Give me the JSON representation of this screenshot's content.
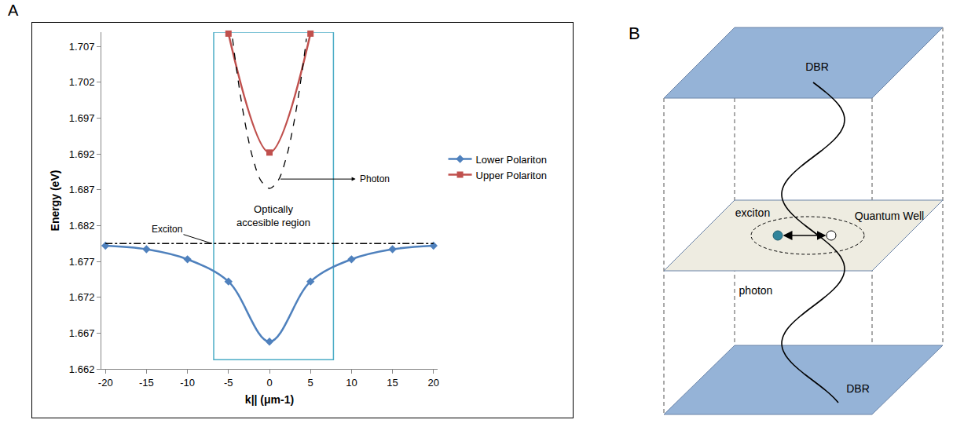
{
  "panel_labels": [
    "A",
    "B"
  ],
  "chart_data": {
    "type": "line",
    "xlabel": "k|| (μm-1)",
    "ylabel": "Energy (eV)",
    "xlim": [
      -20.5,
      20.5
    ],
    "xticks": [
      -20,
      -15,
      -10,
      -5,
      0,
      5,
      10,
      15,
      20
    ],
    "ylim": [
      1.662,
      1.709
    ],
    "yticks": [
      1.662,
      1.667,
      1.672,
      1.677,
      1.682,
      1.687,
      1.692,
      1.697,
      1.702,
      1.707
    ],
    "grid": false,
    "legend": "right",
    "series": [
      {
        "name": "Lower Polariton",
        "color": "#4F81BD",
        "marker": "diamond",
        "line_style": "solid",
        "x": [
          -20,
          -15,
          -10,
          -5,
          0,
          5,
          10,
          15,
          20
        ],
        "values": [
          1.6792,
          1.6787,
          1.6773,
          1.6742,
          1.6658,
          1.6742,
          1.6773,
          1.6787,
          1.6792
        ]
      },
      {
        "name": "Upper Polariton",
        "color": "#C0504D",
        "marker": "square",
        "line_style": "solid",
        "x": [
          -5,
          0,
          5
        ],
        "values": [
          1.7088,
          1.6922,
          1.7088
        ]
      },
      {
        "color": "#000000",
        "marker": "none",
        "line_style": "dash",
        "x": [
          -4.5,
          -4,
          -3,
          -2,
          -1,
          0,
          1,
          2,
          3,
          4,
          4.5
        ],
        "values": [
          1.7081,
          1.7037,
          1.6965,
          1.6913,
          1.6882,
          1.6872,
          1.6882,
          1.6913,
          1.6965,
          1.7037,
          1.7081
        ]
      },
      {
        "color": "#000000",
        "marker": "none",
        "line_style": "dashdot",
        "x": [
          -20,
          20
        ],
        "values": [
          1.6795,
          1.6795
        ]
      }
    ],
    "annotations": [
      {
        "text": "Photon",
        "x": 10.5,
        "y": 1.6885,
        "from": [
          1.2,
          1.6885
        ]
      },
      {
        "text": "Exciton",
        "x": -12.5,
        "y": 1.6815,
        "to": [
          -7,
          1.6795
        ]
      }
    ],
    "regions": [
      {
        "text": "Optically accesible region",
        "color": "#4BACC6",
        "x0": -6.8,
        "x1": 7.8,
        "y0": 1.6633,
        "y1": 1.709
      }
    ]
  },
  "diagram": {
    "top_mirror": "DBR",
    "bottom_mirror": "DBR",
    "layer": "Quantum Well",
    "exciton": "exciton",
    "photon": "photon"
  }
}
